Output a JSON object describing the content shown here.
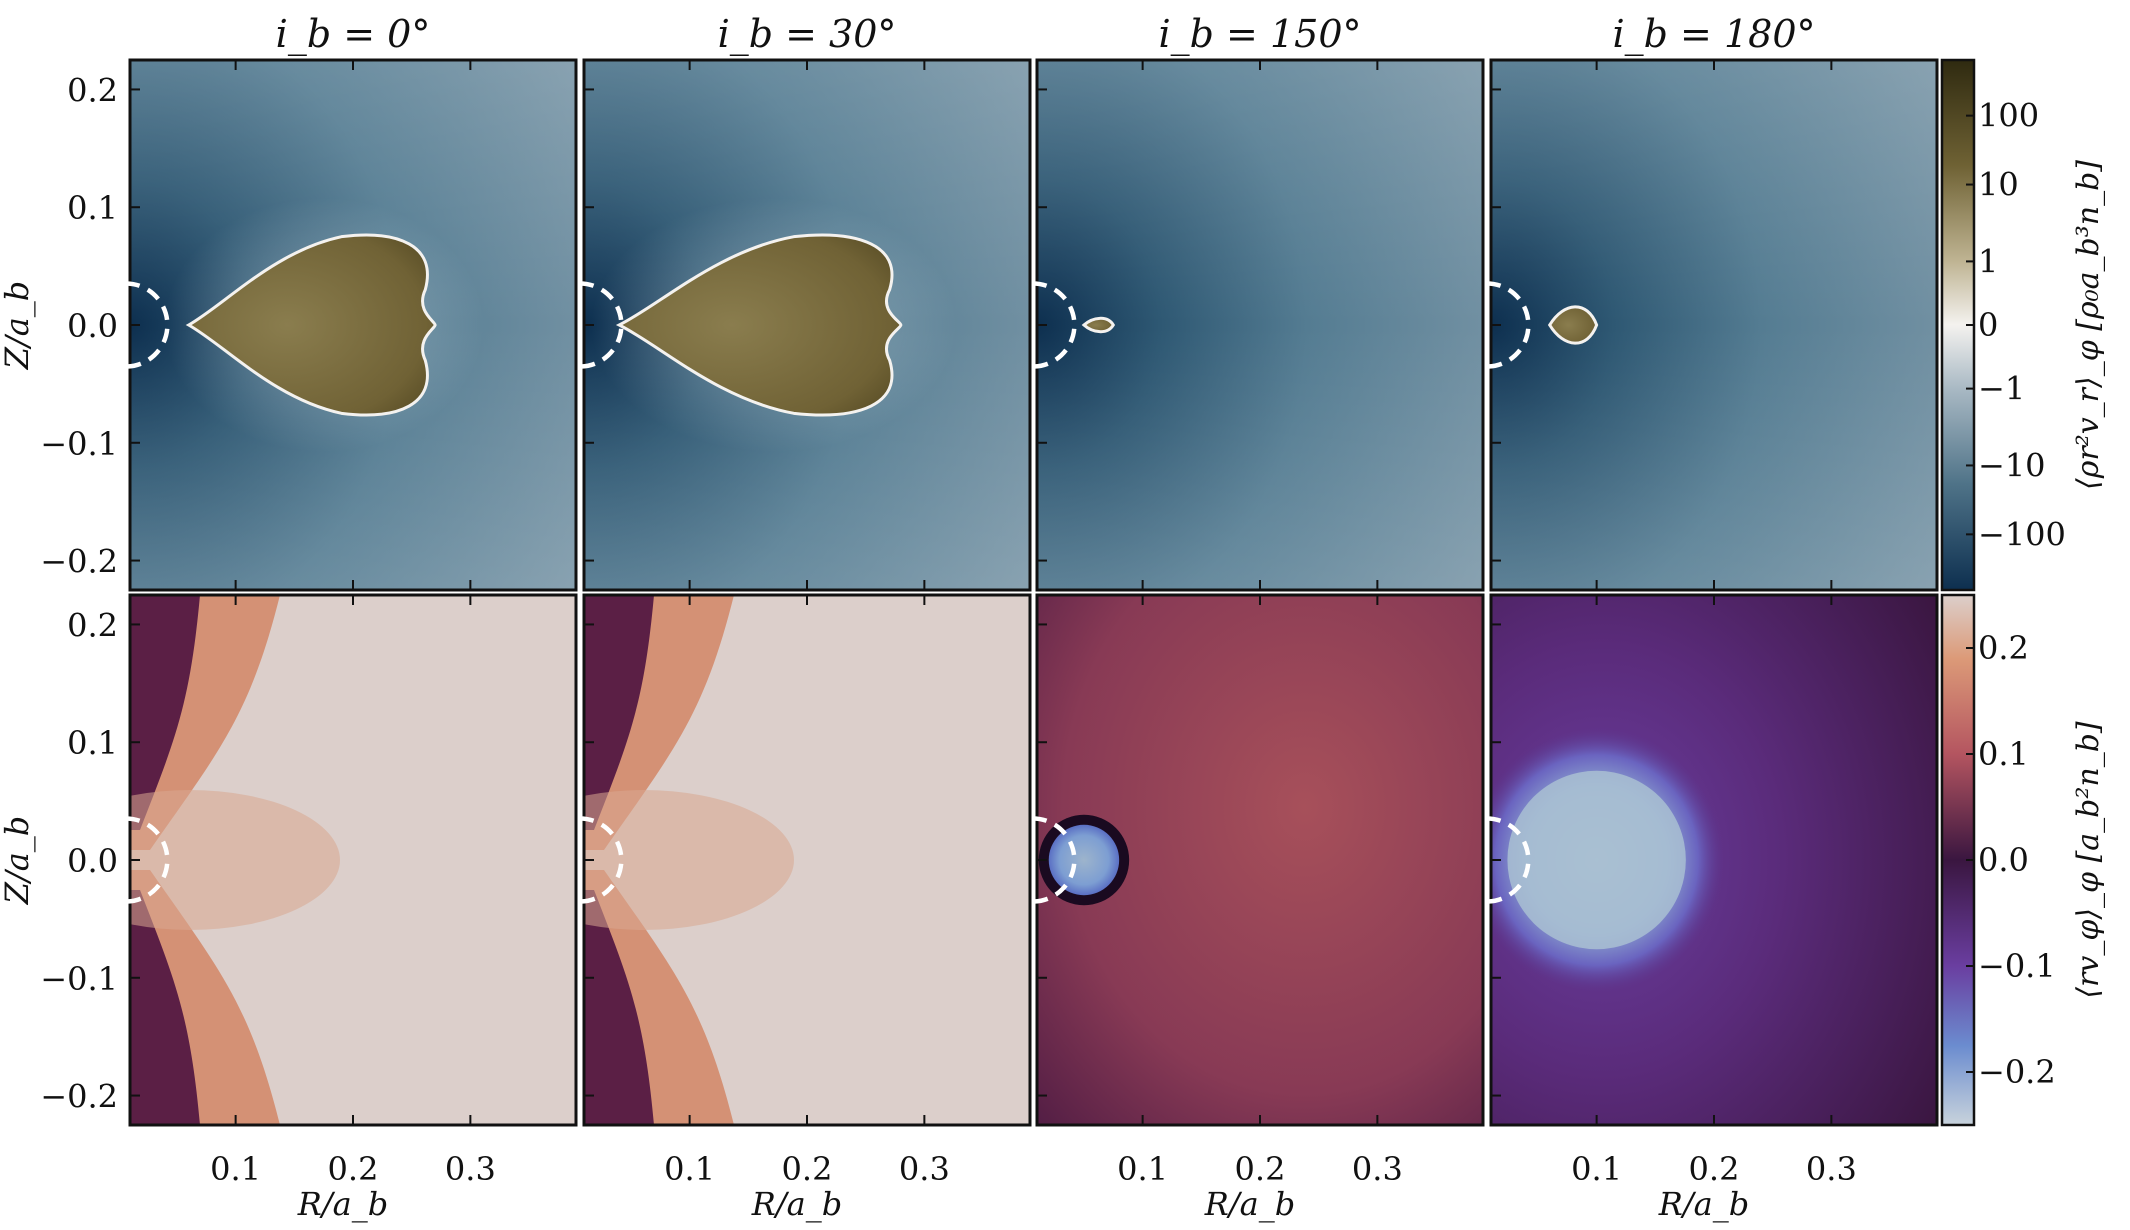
{
  "chart_data": {
    "type": "heatmap",
    "panel_titles": [
      "i_b = 0°",
      "i_b = 30°",
      "i_b = 150°",
      "i_b = 180°"
    ],
    "xlabel": "R/a_b",
    "ylabel": "Z/a_b",
    "x_ticks": [
      "0.1",
      "0.2",
      "0.3"
    ],
    "y_ticks": [
      "0.2",
      "0.1",
      "0.0",
      "−0.1",
      "−0.2"
    ],
    "xlim": [
      0.01,
      0.39
    ],
    "ylim": [
      -0.225,
      0.225
    ],
    "rows": [
      {
        "quantity": "⟨ρr²v_r⟩_φ [ρ₀a_b³n_b]",
        "colorbar_ticks": [
          "100",
          "10",
          "1",
          "0",
          "−1",
          "−10",
          "−100"
        ],
        "colorbar_scale": "symlog",
        "colormap": [
          "#0d2f4f",
          "#5d7f93",
          "#f4f2ef",
          "#8a7d4e",
          "#2f2a10"
        ],
        "panels": [
          {
            "feature": "outflow lobe",
            "extent_R": [
              0.06,
              0.27
            ],
            "extent_Z": [
              -0.075,
              0.075
            ]
          },
          {
            "feature": "outflow lobe",
            "extent_R": [
              0.04,
              0.28
            ],
            "extent_Z": [
              -0.075,
              0.075
            ]
          },
          {
            "feature": "small outflow",
            "extent_R": [
              0.05,
              0.075
            ],
            "extent_Z": [
              -0.005,
              0.005
            ]
          },
          {
            "feature": "small outflow",
            "extent_R": [
              0.06,
              0.1
            ],
            "extent_Z": [
              -0.018,
              0.018
            ]
          }
        ]
      },
      {
        "quantity": "⟨rv_φ⟩_φ [a_b²n_b]",
        "colorbar_ticks": [
          "0.2",
          "0.1",
          "0.0",
          "−0.1",
          "−0.2"
        ],
        "colorbar_range": [
          -0.25,
          0.25
        ],
        "colormap": [
          "#c8d3dc",
          "#6b8ccf",
          "#3a1640",
          "#b45560",
          "#dccfcb"
        ],
        "panels": [
          {
            "feature": "prograde",
            "value_far": 0.24
          },
          {
            "feature": "prograde",
            "value_far": 0.24
          },
          {
            "feature": "retrograde core",
            "core_center_R": 0.05,
            "core_radius": 0.03,
            "value_core": -0.17,
            "value_far": 0.07
          },
          {
            "feature": "retrograde core",
            "core_center_R": 0.1,
            "core_radius": 0.08,
            "value_core": -0.2,
            "value_far": -0.05
          }
        ]
      }
    ],
    "inner_boundary_radius": 0.03
  }
}
